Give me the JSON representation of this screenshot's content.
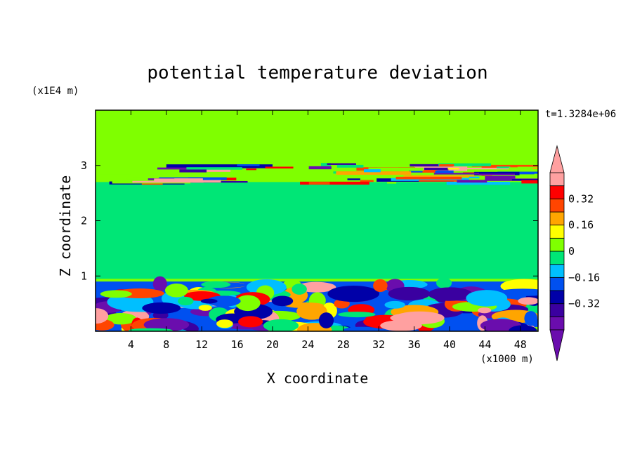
{
  "chart_data": {
    "type": "heatmap",
    "title": "potential temperature deviation",
    "xlabel": "X coordinate",
    "ylabel": "Z coordinate",
    "x_unit": "(x1000 m)",
    "y_unit": "(x1E4 m)",
    "time_label": "t=1.3284e+06",
    "xlim": [
      0,
      50
    ],
    "ylim": [
      0,
      4
    ],
    "x_ticks": [
      4,
      8,
      12,
      16,
      20,
      24,
      28,
      32,
      36,
      40,
      44,
      48
    ],
    "y_ticks": [
      1,
      2,
      3
    ],
    "colorbar": {
      "levels": [
        -0.48,
        -0.4,
        -0.32,
        -0.24,
        -0.16,
        -0.08,
        0,
        0.08,
        0.16,
        0.24,
        0.32,
        0.4
      ],
      "labels": [
        {
          "value": 0.32,
          "text": "0.32"
        },
        {
          "value": 0.16,
          "text": "0.16"
        },
        {
          "value": 0,
          "text": "0"
        },
        {
          "value": -0.16,
          "text": "−0.16"
        },
        {
          "value": -0.32,
          "text": "−0.32"
        }
      ],
      "colors": [
        "#6a0dad",
        "#3a00a0",
        "#0000a8",
        "#0050f0",
        "#00bfff",
        "#00e676",
        "#7fff00",
        "#ffff00",
        "#ffa500",
        "#ff4500",
        "#ff0000",
        "#ffa0a0"
      ],
      "over_color": "#ffa0a0",
      "under_color": "#6a0dad"
    },
    "background_level": "#7fff00",
    "regions": [
      {
        "name": "upper-neutral",
        "color": "#7fff00",
        "x": [
          0,
          50
        ],
        "y": [
          3.3,
          4.0
        ]
      },
      {
        "name": "mid-green",
        "color": "#00e676",
        "x": [
          0,
          50
        ],
        "y": [
          0.95,
          2.7
        ]
      },
      {
        "name": "upper-band-blue",
        "color": "#0000a8",
        "x": [
          8,
          20
        ],
        "y": [
          2.95,
          3.02
        ]
      },
      {
        "name": "upper-band-pink",
        "color": "#ffa0a0",
        "x": [
          36,
          42
        ],
        "y": [
          2.9,
          2.98
        ]
      },
      {
        "name": "upper-band-purple",
        "color": "#6a0dad",
        "x": [
          44,
          50
        ],
        "y": [
          2.72,
          2.85
        ]
      },
      {
        "name": "lower-turbulent-blue",
        "color": "#0050f0",
        "x": [
          0,
          50
        ],
        "y": [
          0.0,
          0.9
        ]
      }
    ]
  }
}
